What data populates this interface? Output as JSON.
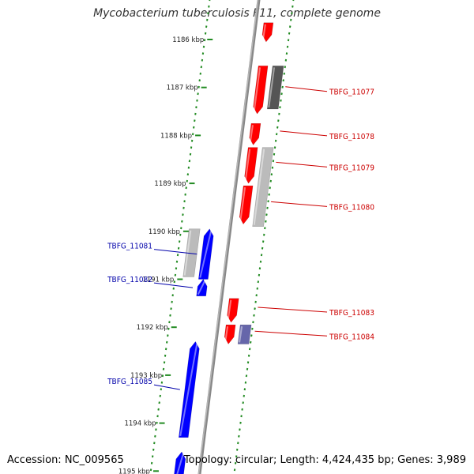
{
  "title": "Mycobacterium tuberculosis F11, complete genome",
  "footer": {
    "accession": "Accession: NC_009565",
    "summary": "Topology: circular; Length: 4,424,435 bp; Genes: 3,989"
  },
  "colors": {
    "forward_gene": "#ff0000",
    "reverse_gene": "#0000ff",
    "backbone": "#888888",
    "tick": "#228b22",
    "forward_label": "#cc0000",
    "reverse_label": "#0000aa"
  },
  "ticks": [
    {
      "kbp": 1186,
      "label": "1186 kbp"
    },
    {
      "kbp": 1187,
      "label": "1187 kbp"
    },
    {
      "kbp": 1188,
      "label": "1188 kbp"
    },
    {
      "kbp": 1189,
      "label": "1189 kbp"
    },
    {
      "kbp": 1190,
      "label": "1190 kbp"
    },
    {
      "kbp": 1191,
      "label": "1191 kbp"
    },
    {
      "kbp": 1192,
      "label": "1192 kbp"
    },
    {
      "kbp": 1193,
      "label": "1193 kbp"
    },
    {
      "kbp": 1194,
      "label": "1194 kbp"
    },
    {
      "kbp": 1195,
      "label": "1195 kbp"
    }
  ],
  "features": [
    {
      "start": 1185.65,
      "end": 1186.05,
      "strand": "+",
      "track": "gene",
      "label": ""
    },
    {
      "start": 1186.55,
      "end": 1187.55,
      "strand": "+",
      "track": "gene",
      "label": "TBFG_11077"
    },
    {
      "start": 1186.55,
      "end": 1187.45,
      "strand": "+",
      "track": "product",
      "shade": "#555555",
      "label": ""
    },
    {
      "start": 1187.75,
      "end": 1188.2,
      "strand": "+",
      "track": "gene",
      "label": "TBFG_11078"
    },
    {
      "start": 1188.25,
      "end": 1189.0,
      "strand": "+",
      "track": "gene",
      "label": "TBFG_11079"
    },
    {
      "start": 1188.25,
      "end": 1189.9,
      "strand": "+",
      "track": "product",
      "shade": "#bbbbbb",
      "label": ""
    },
    {
      "start": 1189.05,
      "end": 1189.85,
      "strand": "+",
      "track": "gene",
      "label": "TBFG_11080"
    },
    {
      "start": 1189.95,
      "end": 1191.0,
      "strand": "-",
      "track": "gene",
      "label": "TBFG_11081"
    },
    {
      "start": 1189.95,
      "end": 1190.95,
      "strand": "-",
      "track": "product",
      "shade": "#bbbbbb",
      "label": ""
    },
    {
      "start": 1191.0,
      "end": 1191.35,
      "strand": "-",
      "track": "gene",
      "label": "TBFG_11082"
    },
    {
      "start": 1191.4,
      "end": 1191.9,
      "strand": "+",
      "track": "gene",
      "label": "TBFG_11083"
    },
    {
      "start": 1191.95,
      "end": 1192.35,
      "strand": "+",
      "track": "gene",
      "label": "TBFG_11084"
    },
    {
      "start": 1191.95,
      "end": 1192.35,
      "strand": "+",
      "track": "product",
      "shade": "#6666aa",
      "label": ""
    },
    {
      "start": 1192.3,
      "end": 1194.3,
      "strand": "-",
      "track": "gene",
      "label": "TBFG_11085"
    },
    {
      "start": 1194.6,
      "end": 1195.3,
      "strand": "-",
      "track": "gene",
      "label": ""
    }
  ]
}
